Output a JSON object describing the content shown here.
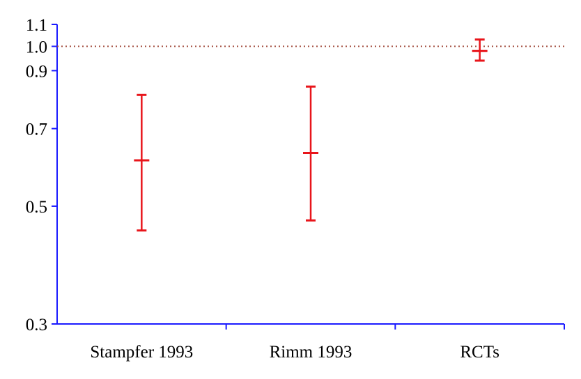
{
  "chart_data": {
    "type": "error_bar",
    "categories": [
      "Stampfer 1993",
      "Rimm 1993",
      "RCTs"
    ],
    "series": [
      {
        "estimates": [
          0.61,
          0.63,
          0.98
        ],
        "lower": [
          0.45,
          0.47,
          0.94
        ],
        "upper": [
          0.81,
          0.84,
          1.03
        ],
        "color": "#e8151b"
      }
    ],
    "reference_line": {
      "value": 1.0,
      "style": "dotted",
      "color": "#a0493a"
    },
    "yticks": [
      0.3,
      0.5,
      0.7,
      0.9,
      1.0,
      1.1
    ],
    "ytick_labels": [
      "0.3",
      "0.5",
      "0.7",
      "0.9",
      "1.0",
      "1.1"
    ],
    "ylim": [
      0.3,
      1.1
    ],
    "yscale": "log",
    "axis_color": "#1a1aff",
    "grid": false,
    "legend": "none"
  }
}
